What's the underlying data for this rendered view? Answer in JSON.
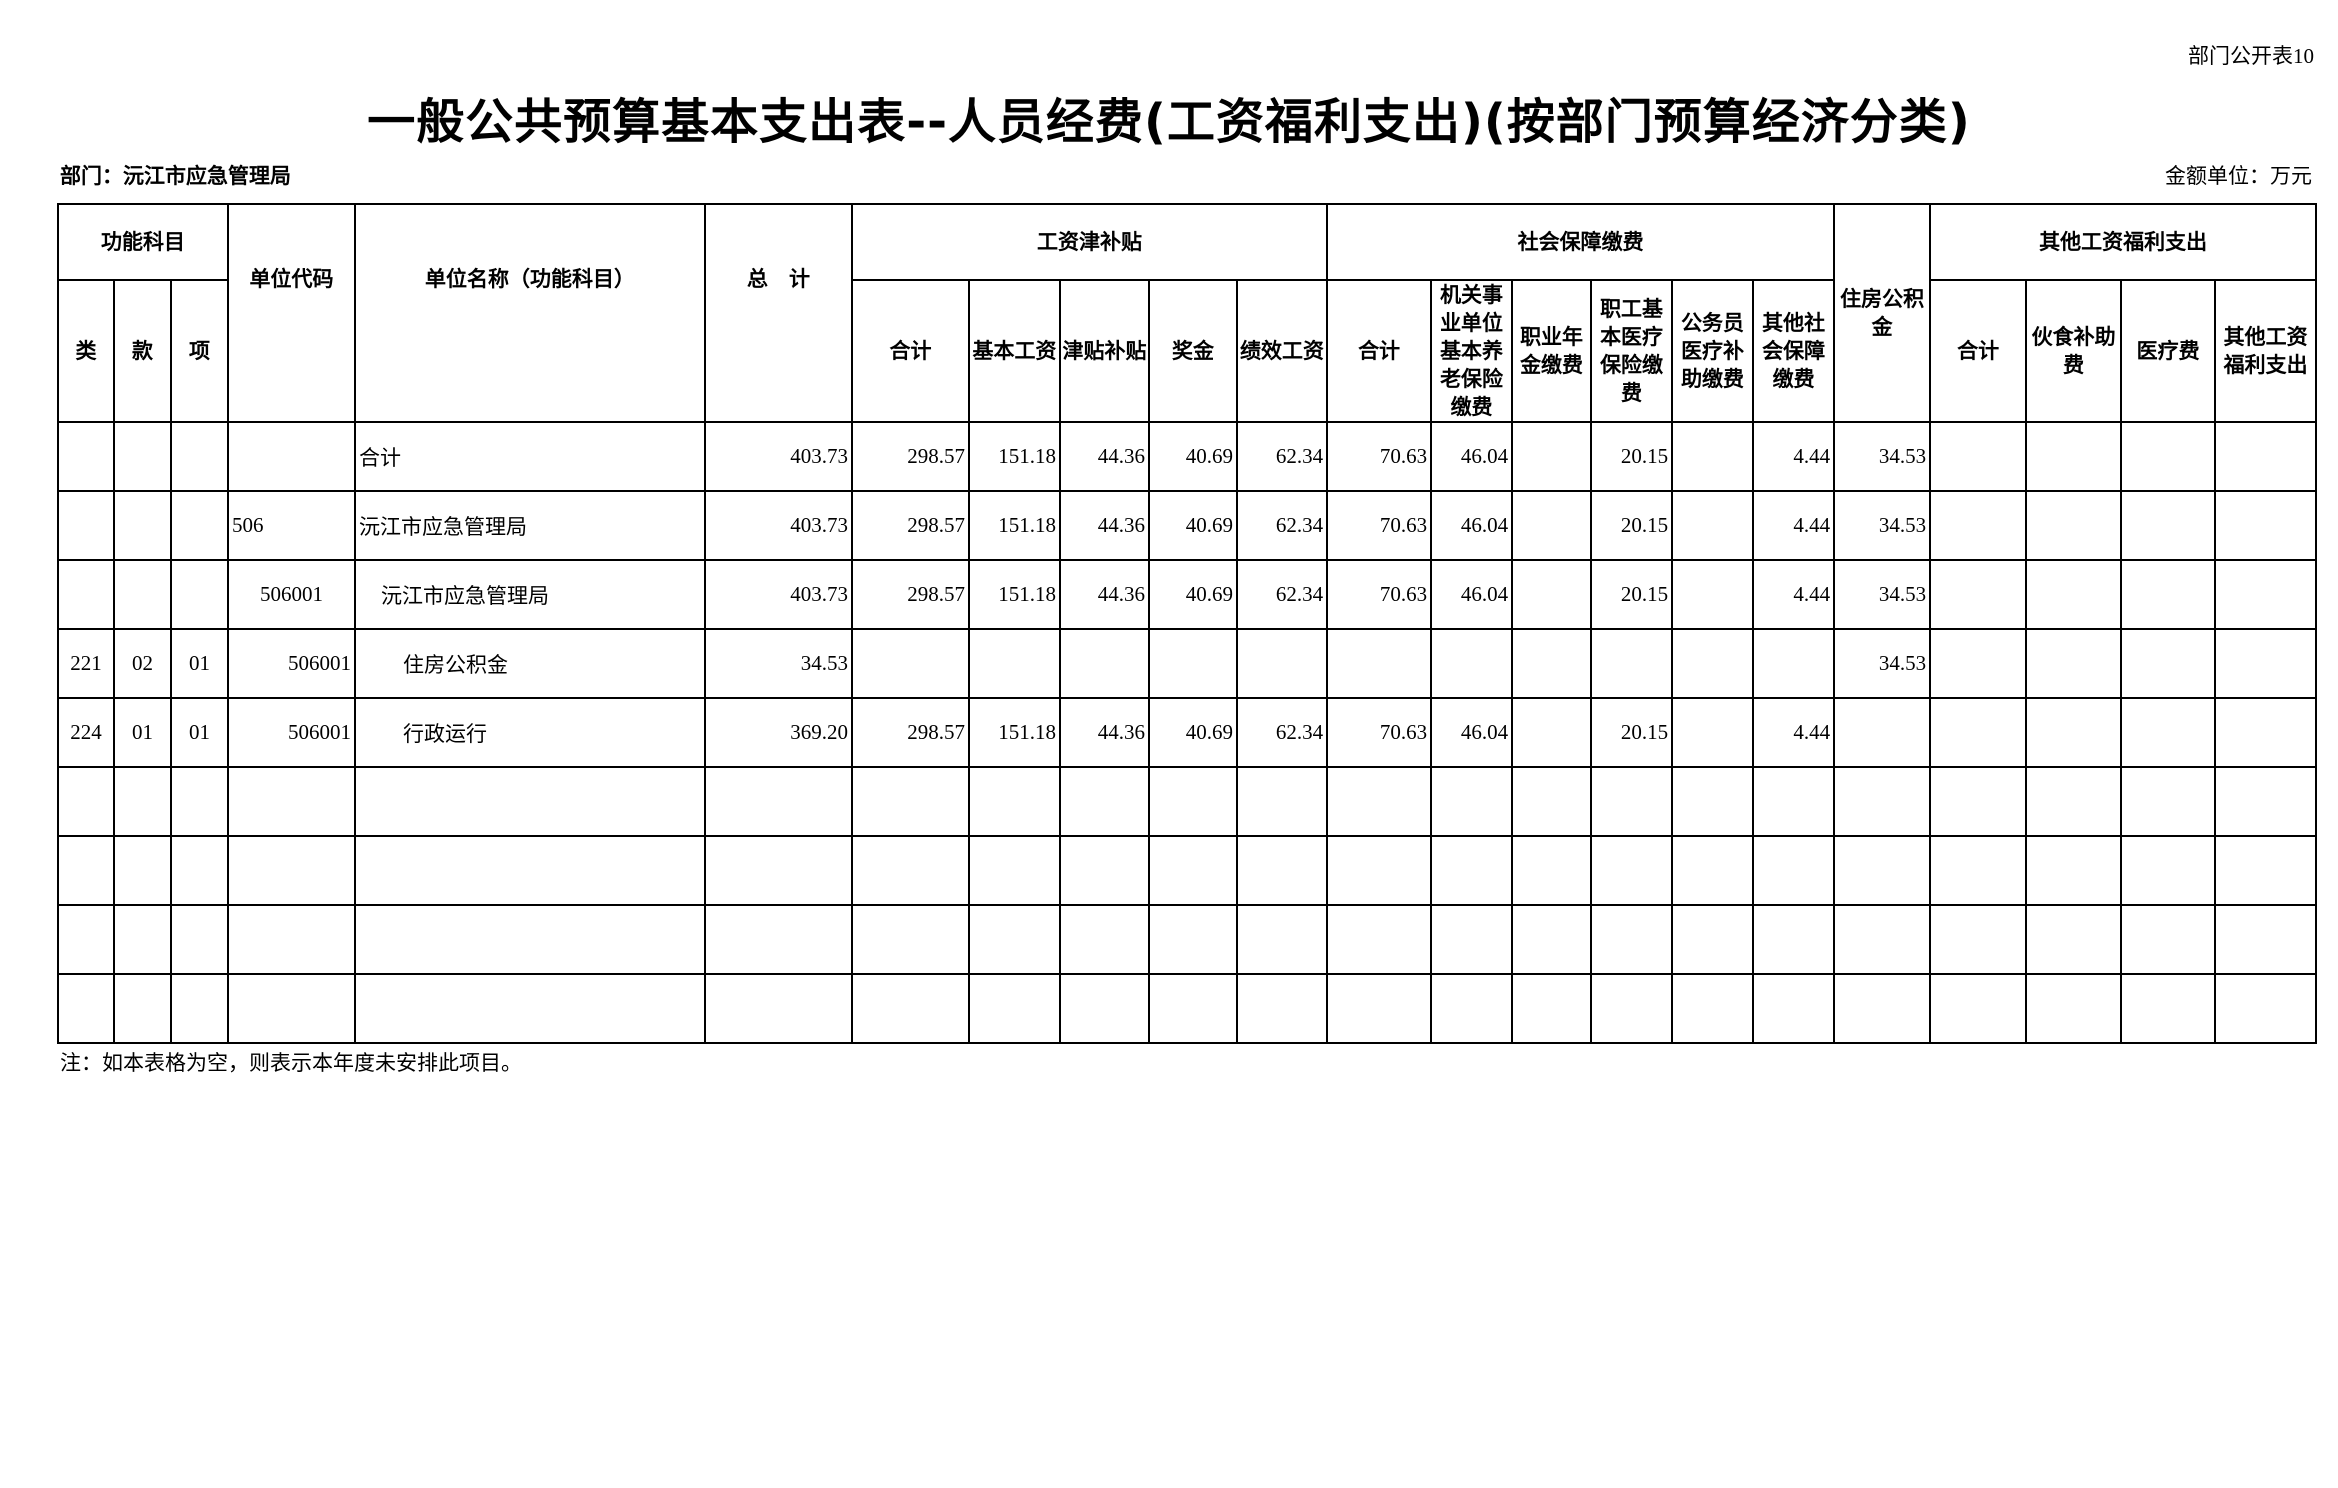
{
  "form_tag": "部门公开表10",
  "title": "一般公共预算基本支出表--人员经费(工资福利支出)(按部门预算经济分类)",
  "department": "部门：沅江市应急管理局",
  "unit": "金额单位：万元",
  "header": {
    "func_subject": "功能科目",
    "lei": "类",
    "kuan": "款",
    "xiang": "项",
    "unit_code": "单位代码",
    "unit_name": "单位名称（功能科目）",
    "total": "总　计",
    "salary_group": "工资津补贴",
    "salary_cols": [
      "合计",
      "基本工资",
      "津贴补贴",
      "奖金",
      "绩效工资"
    ],
    "social_group": "社会保障缴费",
    "social_cols": [
      "合计",
      "机关事业单位基本养老保险缴费",
      "职业年金缴费",
      "职工基本医疗保险缴费",
      "公务员医疗补助缴费",
      "其他社会保障缴费"
    ],
    "housing": "住房公积金",
    "other_group": "其他工资福利支出",
    "other_cols": [
      "合计",
      "伙食补助费",
      "医疗费",
      "其他工资福利支出"
    ]
  },
  "rows": [
    {
      "lei": "",
      "kuan": "",
      "xiang": "",
      "code": "",
      "name": "合计",
      "indent": 0,
      "values": [
        "403.73",
        "298.57",
        "151.18",
        "44.36",
        "40.69",
        "62.34",
        "70.63",
        "46.04",
        "",
        "20.15",
        "",
        "4.44",
        "34.53",
        "",
        "",
        "",
        ""
      ]
    },
    {
      "lei": "",
      "kuan": "",
      "xiang": "",
      "code": "506",
      "name": "沅江市应急管理局",
      "indent": 0,
      "values": [
        "403.73",
        "298.57",
        "151.18",
        "44.36",
        "40.69",
        "62.34",
        "70.63",
        "46.04",
        "",
        "20.15",
        "",
        "4.44",
        "34.53",
        "",
        "",
        "",
        ""
      ]
    },
    {
      "lei": "",
      "kuan": "",
      "xiang": "",
      "code": "506001",
      "name": "沅江市应急管理局",
      "indent": 1,
      "values": [
        "403.73",
        "298.57",
        "151.18",
        "44.36",
        "40.69",
        "62.34",
        "70.63",
        "46.04",
        "",
        "20.15",
        "",
        "4.44",
        "34.53",
        "",
        "",
        "",
        ""
      ]
    },
    {
      "lei": "221",
      "kuan": "02",
      "xiang": "01",
      "code": "506001",
      "name": "住房公积金",
      "indent": 2,
      "values": [
        "34.53",
        "",
        "",
        "",
        "",
        "",
        "",
        "",
        "",
        "",
        "",
        "",
        "34.53",
        "",
        "",
        "",
        ""
      ]
    },
    {
      "lei": "224",
      "kuan": "01",
      "xiang": "01",
      "code": "506001",
      "name": "行政运行",
      "indent": 2,
      "values": [
        "369.20",
        "298.57",
        "151.18",
        "44.36",
        "40.69",
        "62.34",
        "70.63",
        "46.04",
        "",
        "20.15",
        "",
        "4.44",
        "",
        "",
        "",
        "",
        ""
      ]
    },
    {
      "lei": "",
      "kuan": "",
      "xiang": "",
      "code": "",
      "name": "",
      "indent": 0,
      "values": [
        "",
        "",
        "",
        "",
        "",
        "",
        "",
        "",
        "",
        "",
        "",
        "",
        "",
        "",
        "",
        "",
        ""
      ]
    },
    {
      "lei": "",
      "kuan": "",
      "xiang": "",
      "code": "",
      "name": "",
      "indent": 0,
      "values": [
        "",
        "",
        "",
        "",
        "",
        "",
        "",
        "",
        "",
        "",
        "",
        "",
        "",
        "",
        "",
        "",
        ""
      ]
    },
    {
      "lei": "",
      "kuan": "",
      "xiang": "",
      "code": "",
      "name": "",
      "indent": 0,
      "values": [
        "",
        "",
        "",
        "",
        "",
        "",
        "",
        "",
        "",
        "",
        "",
        "",
        "",
        "",
        "",
        "",
        ""
      ]
    },
    {
      "lei": "",
      "kuan": "",
      "xiang": "",
      "code": "",
      "name": "",
      "indent": 0,
      "values": [
        "",
        "",
        "",
        "",
        "",
        "",
        "",
        "",
        "",
        "",
        "",
        "",
        "",
        "",
        "",
        "",
        ""
      ]
    }
  ],
  "note": "注：如本表格为空，则表示本年度未安排此项目。"
}
